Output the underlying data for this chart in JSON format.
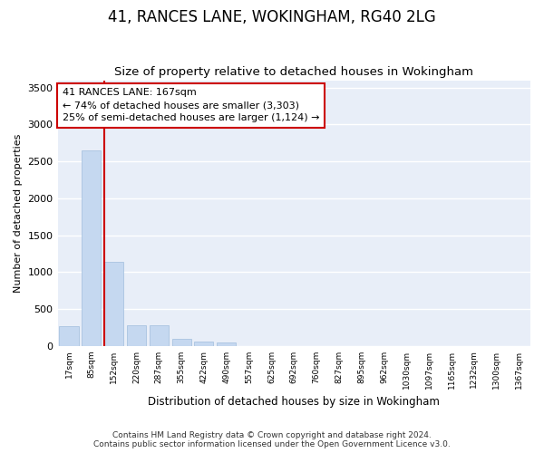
{
  "title": "41, RANCES LANE, WOKINGHAM, RG40 2LG",
  "subtitle": "Size of property relative to detached houses in Wokingham",
  "xlabel": "Distribution of detached houses by size in Wokingham",
  "ylabel": "Number of detached properties",
  "bar_color": "#c5d8f0",
  "bar_edge_color": "#a0bedd",
  "vline_color": "#cc0000",
  "annotation_text": "41 RANCES LANE: 167sqm\n← 74% of detached houses are smaller (3,303)\n25% of semi-detached houses are larger (1,124) →",
  "annotation_box_color": "#ffffff",
  "annotation_box_edge": "#cc0000",
  "categories": [
    "17sqm",
    "85sqm",
    "152sqm",
    "220sqm",
    "287sqm",
    "355sqm",
    "422sqm",
    "490sqm",
    "557sqm",
    "625sqm",
    "692sqm",
    "760sqm",
    "827sqm",
    "895sqm",
    "962sqm",
    "1030sqm",
    "1097sqm",
    "1165sqm",
    "1232sqm",
    "1300sqm",
    "1367sqm"
  ],
  "values": [
    270,
    2650,
    1140,
    280,
    280,
    90,
    55,
    40,
    0,
    0,
    0,
    0,
    0,
    0,
    0,
    0,
    0,
    0,
    0,
    0,
    0
  ],
  "ylim": [
    0,
    3600
  ],
  "yticks": [
    0,
    500,
    1000,
    1500,
    2000,
    2500,
    3000,
    3500
  ],
  "figsize": [
    6.0,
    5.0
  ],
  "dpi": 100,
  "footer_line1": "Contains HM Land Registry data © Crown copyright and database right 2024.",
  "footer_line2": "Contains public sector information licensed under the Open Government Licence v3.0.",
  "fig_background_color": "#ffffff",
  "plot_bg_color": "#e8eef8",
  "grid_color": "#ffffff",
  "title_fontsize": 12,
  "subtitle_fontsize": 9.5,
  "footer_fontsize": 6.5
}
